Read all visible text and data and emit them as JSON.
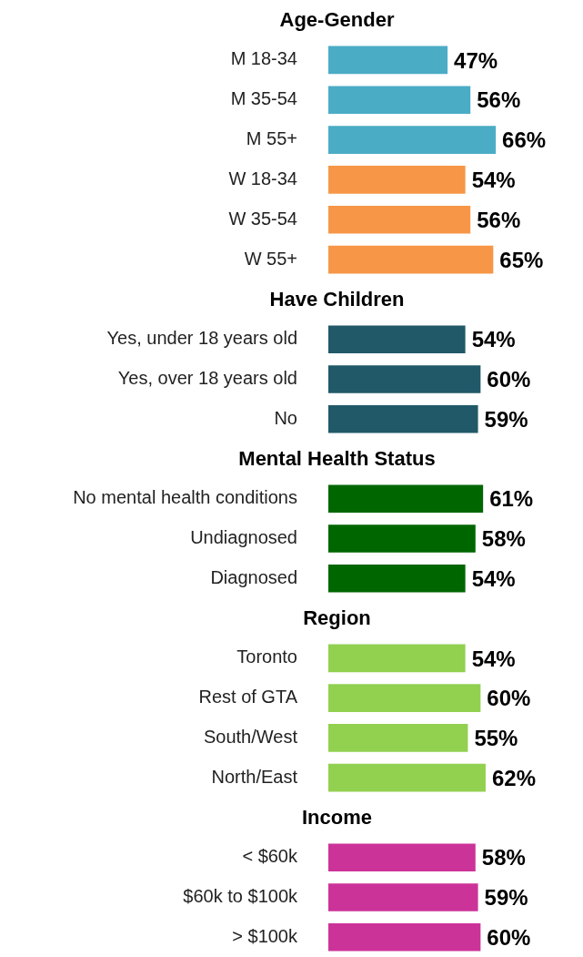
{
  "chart_data": [
    {
      "type": "bar",
      "orientation": "horizontal",
      "title": "Age-Gender",
      "categories": [
        "M 18-34",
        "M 35-54",
        "M 55+",
        "W 18-34",
        "W 35-54",
        "W 55+"
      ],
      "values": [
        47,
        56,
        66,
        54,
        56,
        65
      ],
      "colors": [
        "#4bacc6",
        "#4bacc6",
        "#4bacc6",
        "#f79646",
        "#f79646",
        "#f79646"
      ],
      "value_labels": [
        "47%",
        "56%",
        "66%",
        "54%",
        "56%",
        "65%"
      ],
      "tick_labels": "y"
    },
    {
      "type": "bar",
      "orientation": "horizontal",
      "title": "Have Children",
      "categories": [
        "Yes, under 18 years old",
        "Yes, over 18 years old",
        "No"
      ],
      "values": [
        54,
        60,
        59
      ],
      "colors": [
        "#215968",
        "#215968",
        "#215968"
      ],
      "value_labels": [
        "54%",
        "60%",
        "59%"
      ],
      "tick_labels": "y"
    },
    {
      "type": "bar",
      "orientation": "horizontal",
      "title": "Mental Health Status",
      "categories": [
        "No mental health conditions",
        "Undiagnosed",
        "Diagnosed"
      ],
      "values": [
        61,
        58,
        54
      ],
      "colors": [
        "#006600",
        "#006600",
        "#006600"
      ],
      "value_labels": [
        "61%",
        "58%",
        "54%"
      ],
      "tick_labels": "y"
    },
    {
      "type": "bar",
      "orientation": "horizontal",
      "title": "Region",
      "categories": [
        "Toronto",
        "Rest of GTA",
        "South/West",
        "North/East"
      ],
      "values": [
        54,
        60,
        55,
        62
      ],
      "colors": [
        "#92d050",
        "#92d050",
        "#92d050",
        "#92d050"
      ],
      "value_labels": [
        "54%",
        "60%",
        "55%",
        "62%"
      ],
      "tick_labels": "y"
    },
    {
      "type": "bar",
      "orientation": "horizontal",
      "title": "Income",
      "categories": [
        "< $60k",
        "$60k to $100k",
        "> $100k"
      ],
      "values": [
        58,
        59,
        60
      ],
      "colors": [
        "#cc3399",
        "#cc3399",
        "#cc3399"
      ],
      "value_labels": [
        "58%",
        "59%",
        "60%"
      ],
      "tick_labels": "y"
    }
  ]
}
